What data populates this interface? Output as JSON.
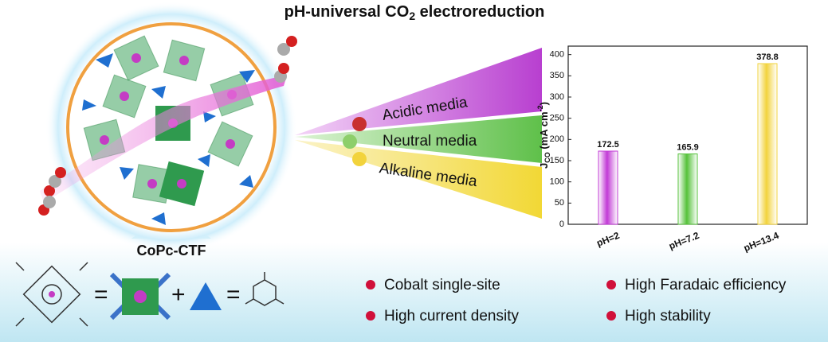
{
  "header": {
    "title": {
      "main": "pH-universal CO",
      "sub": "2",
      "rest": " electroreduction"
    }
  },
  "material": {
    "label": "CoPc-CTF",
    "equation": [
      "=",
      "+",
      "="
    ]
  },
  "media": [
    "Acidic media",
    "Neutral media",
    "Alkaline media"
  ],
  "features": [
    "Cobalt single-site",
    "High current density",
    "High Faradaic efficiency",
    "High stability"
  ],
  "chart_data": {
    "type": "bar",
    "ylabel": {
      "main": "J",
      "sub": "CO",
      "unit": " (mA cm",
      "sup": "-2",
      "end": ")"
    },
    "categories": [
      "pH=2",
      "pH=7.2",
      "pH=13.4"
    ],
    "values": [
      172.5,
      165.9,
      378.8
    ],
    "colors": [
      "#c23ad6",
      "#55c23a",
      "#f2d33c"
    ],
    "ylim": [
      0,
      420
    ],
    "yticks": [
      0,
      50,
      100,
      150,
      200,
      250,
      300,
      350,
      400
    ],
    "grid": false
  }
}
